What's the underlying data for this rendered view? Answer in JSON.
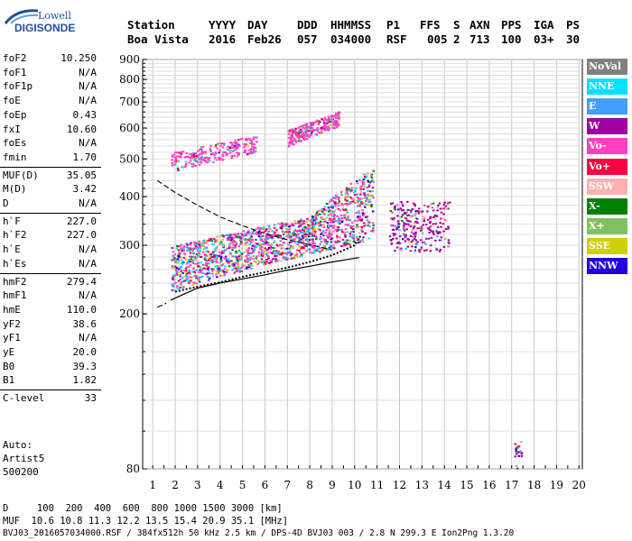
{
  "logo": {
    "line1": "Lowell",
    "line2": "DIGISONDE"
  },
  "header": {
    "row1": [
      "Station",
      "YYYY",
      "DAY",
      "DDD",
      "HHMMSS",
      "P1",
      "FFS",
      "S",
      "AXN",
      "PPS",
      "IGA",
      "PS"
    ],
    "row2": [
      "Boa Vista",
      "2016",
      "Feb26",
      "057",
      "034000",
      "RSF",
      "005",
      "2",
      "713",
      "100",
      "03+",
      "30"
    ]
  },
  "params": [
    {
      "name": "foF2",
      "value": "10.250"
    },
    {
      "name": "foF1",
      "value": "N/A"
    },
    {
      "name": "foF1p",
      "value": "N/A"
    },
    {
      "name": "foE",
      "value": "N/A"
    },
    {
      "name": "foEp",
      "value": "0.43"
    },
    {
      "name": "fxI",
      "value": "10.60"
    },
    {
      "name": "foEs",
      "value": "N/A"
    },
    {
      "name": "fmin",
      "value": "1.70"
    },
    {
      "name": "MUF(D)",
      "value": "35.05"
    },
    {
      "name": "M(D)",
      "value": "3.42"
    },
    {
      "name": "D",
      "value": "N/A"
    },
    {
      "name": "h`F",
      "value": "227.0"
    },
    {
      "name": "h`F2",
      "value": "227.0"
    },
    {
      "name": "h`E",
      "value": "N/A"
    },
    {
      "name": "h`Es",
      "value": "N/A"
    },
    {
      "name": "hmF2",
      "value": "279.4"
    },
    {
      "name": "hmF1",
      "value": "N/A"
    },
    {
      "name": "hmE",
      "value": "110.0"
    },
    {
      "name": "yF2",
      "value": "38.6"
    },
    {
      "name": "yF1",
      "value": "N/A"
    },
    {
      "name": "yE",
      "value": "20.0"
    },
    {
      "name": "B0",
      "value": "39.3"
    },
    {
      "name": "B1",
      "value": "1.82"
    },
    {
      "name": "C-level",
      "value": "33"
    }
  ],
  "auto": {
    "label": "Auto:",
    "program": "Artist5",
    "version": "500200"
  },
  "legend": [
    {
      "label": "NoVal",
      "color": "#808080"
    },
    {
      "label": "NNE",
      "color": "#00e0ff"
    },
    {
      "label": "E",
      "color": "#40a0ff"
    },
    {
      "label": "W",
      "color": "#a000a0"
    },
    {
      "label": "Vo-",
      "color": "#ff40c0"
    },
    {
      "label": "Vo+",
      "color": "#ff0040"
    },
    {
      "label": "SSW",
      "color": "#ffb0b0"
    },
    {
      "label": "X-",
      "color": "#008000"
    },
    {
      "label": "X+",
      "color": "#80c060"
    },
    {
      "label": "SSE",
      "color": "#d0d000"
    },
    {
      "label": "NNW",
      "color": "#2000e0"
    }
  ],
  "footer": {
    "line1": "D     100  200  400  600  800 1000 1500 3000 [km]",
    "line2": "MUF  10.6 10.8 11.3 12.2 13.5 15.4 20.9 35.1 [MHz]",
    "line3": "BVJ03_2016057034000.RSF / 384fx512h 50 kHz 2.5 km / DPS-4D BVJ03 003 / 2.8 N 299.3 E Ion2Png 1.3.20"
  },
  "chart_data": {
    "type": "scatter",
    "x_ticks": [
      "1",
      "2",
      "3",
      "4",
      "5",
      "6",
      "7",
      "8",
      "9",
      "10",
      "11",
      "12",
      "13",
      "14",
      "15",
      "16",
      "17",
      "18",
      "19",
      "20"
    ],
    "y_ticks": [
      "80",
      "200",
      "300",
      "400",
      "500",
      "600",
      "700",
      "800",
      "900"
    ],
    "xlim": [
      1,
      20
    ],
    "ylim": [
      80,
      900
    ],
    "y_scale": "log",
    "grid": true,
    "legend_position": "right",
    "traces": [
      {
        "name": "o-trace profile (solid)",
        "x": [
          1.8,
          3,
          4,
          5,
          6,
          7,
          8,
          9,
          9.7,
          10.2
        ],
        "y": [
          217,
          233,
          240,
          246,
          252,
          259,
          265,
          272,
          276,
          279
        ]
      },
      {
        "name": "h' trace (dashed)",
        "x": [
          1.2,
          2,
          3,
          4,
          5,
          6,
          7,
          8,
          9
        ],
        "y": [
          440,
          410,
          380,
          355,
          337,
          322,
          310,
          301,
          292
        ]
      },
      {
        "name": "h' trace (dashed, lower)",
        "x": [
          1.2,
          1.6
        ],
        "y": [
          208,
          213
        ]
      },
      {
        "name": "profile (black dots)",
        "x": [
          2,
          3,
          4,
          5,
          6,
          7,
          8,
          9,
          10,
          10.3
        ],
        "y": [
          228,
          235,
          241,
          249,
          256,
          263,
          272,
          283,
          300,
          320
        ]
      }
    ],
    "clusters": [
      {
        "x": [
          1.8,
          10.8
        ],
        "y": [
          230,
          420
        ],
        "dominant": "mixed"
      },
      {
        "x": [
          1.8,
          5.6
        ],
        "y": [
          460,
          570
        ],
        "dominant": "Vo-"
      },
      {
        "x": [
          7,
          9.3
        ],
        "y": [
          540,
          650
        ],
        "dominant": "Vo-"
      },
      {
        "x": [
          11.5,
          14.2
        ],
        "y": [
          290,
          390
        ],
        "dominant": "W"
      },
      {
        "x": [
          17.1,
          17.4
        ],
        "y": [
          80,
          95
        ],
        "dominant": "W"
      }
    ]
  }
}
